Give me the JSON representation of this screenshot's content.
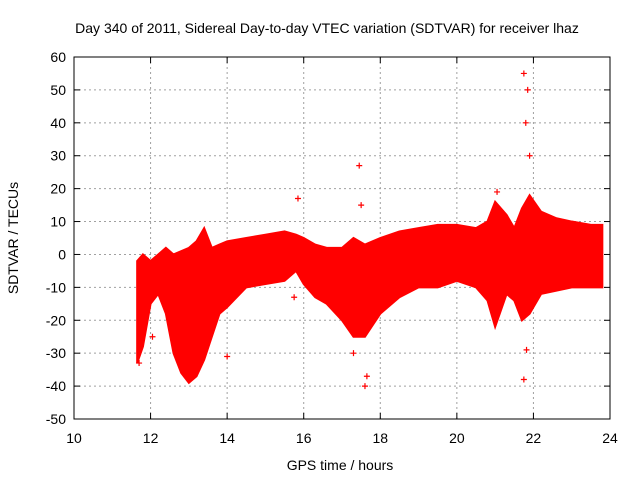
{
  "chart_data": {
    "type": "scatter",
    "title": "Day 340 of 2011, Sidereal Day-to-day VTEC variation (SDTVAR) for receiver lhaz",
    "xlabel": "GPS time / hours",
    "ylabel": "SDTVAR / TECUs",
    "xlim": [
      10,
      24
    ],
    "ylim": [
      -50,
      60
    ],
    "x_ticks": [
      10,
      12,
      14,
      16,
      18,
      20,
      22,
      24
    ],
    "y_ticks": [
      -50,
      -40,
      -30,
      -20,
      -10,
      0,
      10,
      20,
      30,
      40,
      50,
      60
    ],
    "grid": true,
    "marker": "+",
    "color": "#ff0000",
    "band_series": {
      "x": [
        11.65,
        11.8,
        12.0,
        12.2,
        12.4,
        12.6,
        12.8,
        13.0,
        13.2,
        13.4,
        13.6,
        13.8,
        14.0,
        14.5,
        15.0,
        15.5,
        15.8,
        16.0,
        16.3,
        16.6,
        17.0,
        17.3,
        17.6,
        18.0,
        18.5,
        19.0,
        19.5,
        20.0,
        20.5,
        20.8,
        21.0,
        21.3,
        21.5,
        21.7,
        21.9,
        22.2,
        22.6,
        23.0,
        23.5,
        23.8
      ],
      "upper": [
        -2,
        0,
        -2,
        0,
        2,
        0,
        1,
        2,
        4,
        8,
        2,
        3,
        4,
        5,
        6,
        7,
        6,
        5,
        3,
        2,
        2,
        5,
        3,
        5,
        7,
        8,
        9,
        9,
        8,
        10,
        16,
        12,
        8,
        14,
        18,
        13,
        11,
        10,
        9,
        9
      ],
      "lower": [
        -33,
        -28,
        -15,
        -12,
        -18,
        -30,
        -36,
        -39,
        -37,
        -32,
        -25,
        -18,
        -16,
        -10,
        -9,
        -8,
        -5,
        -9,
        -13,
        -15,
        -20,
        -25,
        -25,
        -18,
        -13,
        -10,
        -10,
        -8,
        -10,
        -14,
        -22,
        -12,
        -14,
        -20,
        -18,
        -12,
        -11,
        -10,
        -10,
        -10
      ]
    },
    "outliers": {
      "x": [
        11.7,
        12.05,
        14.0,
        15.85,
        15.75,
        17.3,
        17.45,
        17.6,
        17.65,
        17.5,
        21.05,
        21.75,
        21.85,
        21.8,
        21.9,
        21.75,
        21.82
      ],
      "y": [
        -33,
        -25,
        -31,
        17,
        -13,
        -30,
        27,
        -40,
        -37,
        15,
        19,
        55,
        50,
        40,
        30,
        -38,
        -29
      ]
    }
  }
}
